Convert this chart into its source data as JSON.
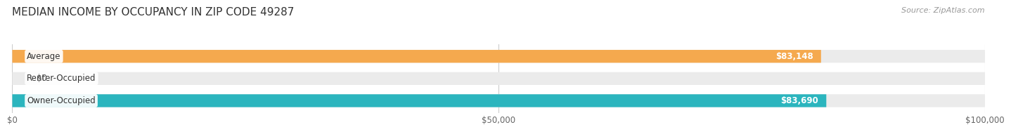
{
  "title": "MEDIAN INCOME BY OCCUPANCY IN ZIP CODE 49287",
  "source": "Source: ZipAtlas.com",
  "categories": [
    "Owner-Occupied",
    "Renter-Occupied",
    "Average"
  ],
  "values": [
    83690,
    0,
    83148
  ],
  "bar_colors": [
    "#2bb5be",
    "#c4a8d4",
    "#f5a94e"
  ],
  "bar_bg_color": "#ebebeb",
  "label_values": [
    "$83,690",
    "$0",
    "$83,148"
  ],
  "xlim": [
    0,
    100000
  ],
  "xticks": [
    0,
    50000,
    100000
  ],
  "xtick_labels": [
    "$0",
    "$50,000",
    "$100,000"
  ],
  "bar_height": 0.58,
  "background_color": "#ffffff",
  "title_fontsize": 11,
  "source_fontsize": 8,
  "label_fontsize": 8.5,
  "tick_fontsize": 8.5,
  "cat_fontsize": 8.5
}
